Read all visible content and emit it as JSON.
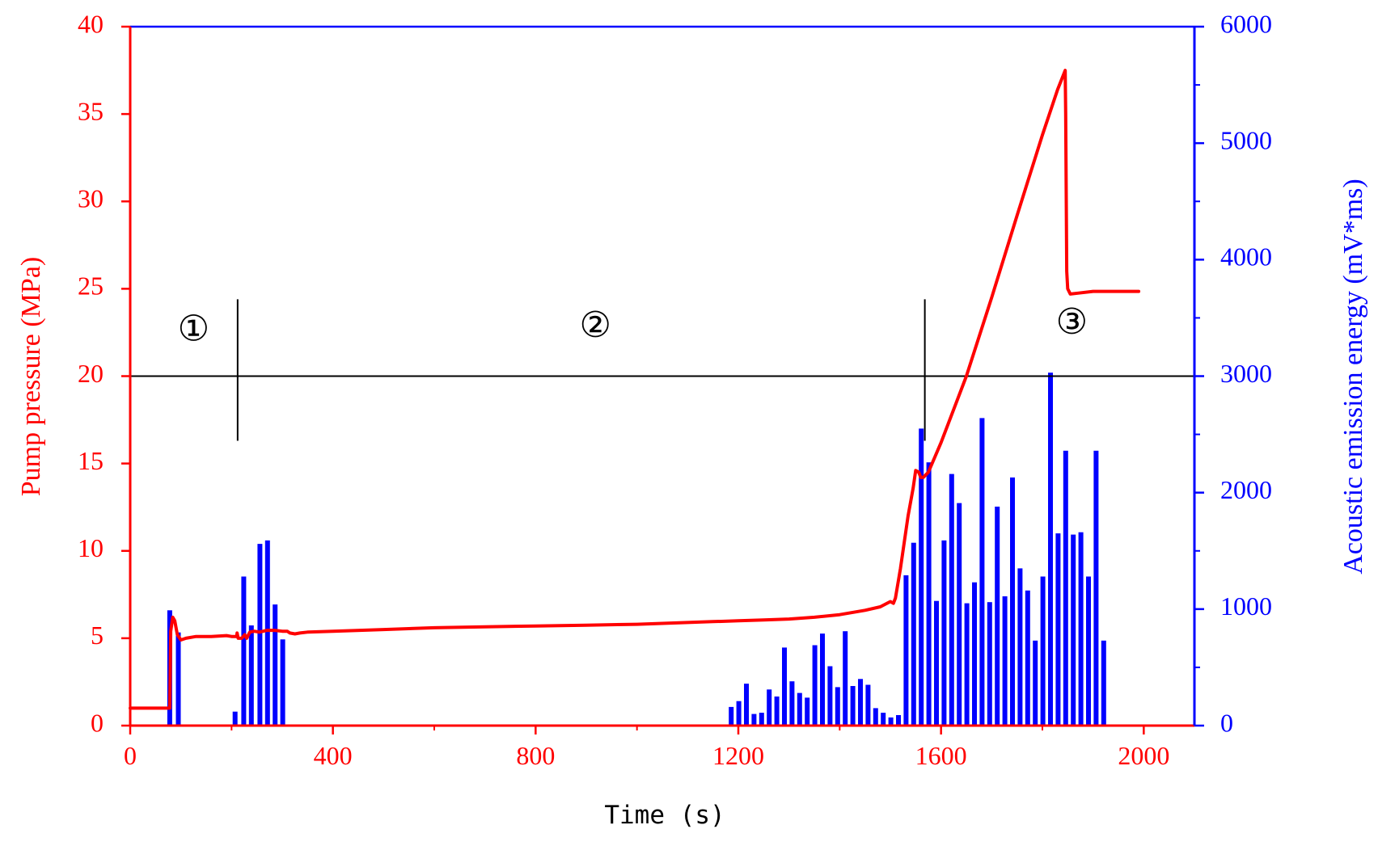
{
  "chart_data": {
    "type": "line+bar",
    "xlabel": "Time (s)",
    "ylabel_left": "Pump pressure (MPa)",
    "ylabel_right": "Acoustic emission energy (mV*ms)",
    "xlim": [
      0,
      2100
    ],
    "x_ticks": [
      0,
      400,
      800,
      1200,
      1600,
      2000
    ],
    "x_ticks_minor": [
      200,
      600,
      1000,
      1400,
      1800
    ],
    "ylim_left": [
      0,
      40
    ],
    "y_ticks_left": [
      0,
      5,
      10,
      15,
      20,
      25,
      30,
      35,
      40
    ],
    "ylim_right": [
      0,
      6000
    ],
    "y_ticks_right": [
      0,
      1000,
      2000,
      3000,
      4000,
      5000,
      6000
    ],
    "y_ticks_right_minor": [
      500,
      1500,
      2500,
      3500,
      4500,
      5500
    ],
    "colors": {
      "pressure": "#ff0000",
      "energy": "#0000ff",
      "annotation": "#000000",
      "background": "#ffffff"
    },
    "series": [
      {
        "name": "Pump pressure (MPa)",
        "kind": "line",
        "axis": "left",
        "x": [
          0,
          60,
          78,
          79,
          80,
          84,
          88,
          93,
          100,
          110,
          130,
          160,
          190,
          200,
          210,
          211,
          213,
          220,
          226,
          230,
          236,
          245,
          255,
          270,
          285,
          300,
          310,
          315,
          325,
          335,
          350,
          400,
          500,
          600,
          700,
          800,
          900,
          1000,
          1100,
          1150,
          1200,
          1250,
          1300,
          1350,
          1400,
          1450,
          1480,
          1500,
          1506,
          1510,
          1520,
          1535,
          1545,
          1550,
          1556,
          1560,
          1565,
          1575,
          1600,
          1650,
          1700,
          1750,
          1800,
          1830,
          1845,
          1846,
          1848,
          1850,
          1855,
          1870,
          1900,
          1950,
          1990
        ],
        "y": [
          1.0,
          1.0,
          1.0,
          3.0,
          5.4,
          6.2,
          6.0,
          5.2,
          4.9,
          5.0,
          5.1,
          5.1,
          5.15,
          5.1,
          5.1,
          5.3,
          5.0,
          5.0,
          5.2,
          5.0,
          5.35,
          5.4,
          5.35,
          5.45,
          5.45,
          5.4,
          5.4,
          5.3,
          5.25,
          5.3,
          5.35,
          5.4,
          5.5,
          5.6,
          5.65,
          5.7,
          5.75,
          5.8,
          5.9,
          5.95,
          6.0,
          6.05,
          6.1,
          6.2,
          6.35,
          6.6,
          6.8,
          7.1,
          7.0,
          7.3,
          9.0,
          12.0,
          13.6,
          14.6,
          14.5,
          14.2,
          14.2,
          14.5,
          16.2,
          20.0,
          24.5,
          29.2,
          33.8,
          36.4,
          37.5,
          35.0,
          26.0,
          25.0,
          24.7,
          24.75,
          24.85,
          24.85,
          24.85
        ]
      },
      {
        "name": "Acoustic emission energy (mV*ms)",
        "kind": "bar",
        "axis": "right",
        "x": [
          78,
          95,
          207,
          224,
          239,
          256,
          271,
          286,
          301,
          1186,
          1201,
          1216,
          1231,
          1246,
          1261,
          1276,
          1291,
          1306,
          1321,
          1336,
          1351,
          1366,
          1381,
          1396,
          1411,
          1426,
          1441,
          1456,
          1471,
          1486,
          1501,
          1516,
          1531,
          1546,
          1561,
          1576,
          1591,
          1606,
          1621,
          1636,
          1651,
          1666,
          1681,
          1696,
          1711,
          1726,
          1741,
          1756,
          1771,
          1786,
          1801,
          1816,
          1831,
          1846,
          1861,
          1876,
          1891,
          1906,
          1921,
          1936,
          1951,
          1966
        ],
        "y": [
          990,
          800,
          120,
          1280,
          860,
          1560,
          1590,
          1040,
          740,
          160,
          210,
          360,
          100,
          110,
          310,
          250,
          670,
          380,
          280,
          240,
          690,
          790,
          510,
          330,
          810,
          340,
          400,
          350,
          150,
          110,
          70,
          90,
          1290,
          1570,
          2550,
          2260,
          1070,
          1590,
          2160,
          1910,
          1050,
          1230,
          2640,
          1060,
          1880,
          1110,
          2130,
          1350,
          1160,
          730,
          1280,
          3030,
          1650,
          2360,
          1640,
          1660,
          1280,
          2360,
          730,
          0,
          0,
          0
        ]
      }
    ],
    "annotations": {
      "hline_y": 20,
      "vlines": [
        {
          "x": 212,
          "y_from": 16.3,
          "y_to": 24.4
        },
        {
          "x": 1568,
          "y_from": 16.3,
          "y_to": 24.4
        }
      ],
      "zones": [
        {
          "label": "①",
          "x": 125,
          "y": 22.5
        },
        {
          "label": "②",
          "x": 918,
          "y": 22.7
        },
        {
          "label": "③",
          "x": 1858,
          "y": 22.9
        }
      ]
    }
  }
}
